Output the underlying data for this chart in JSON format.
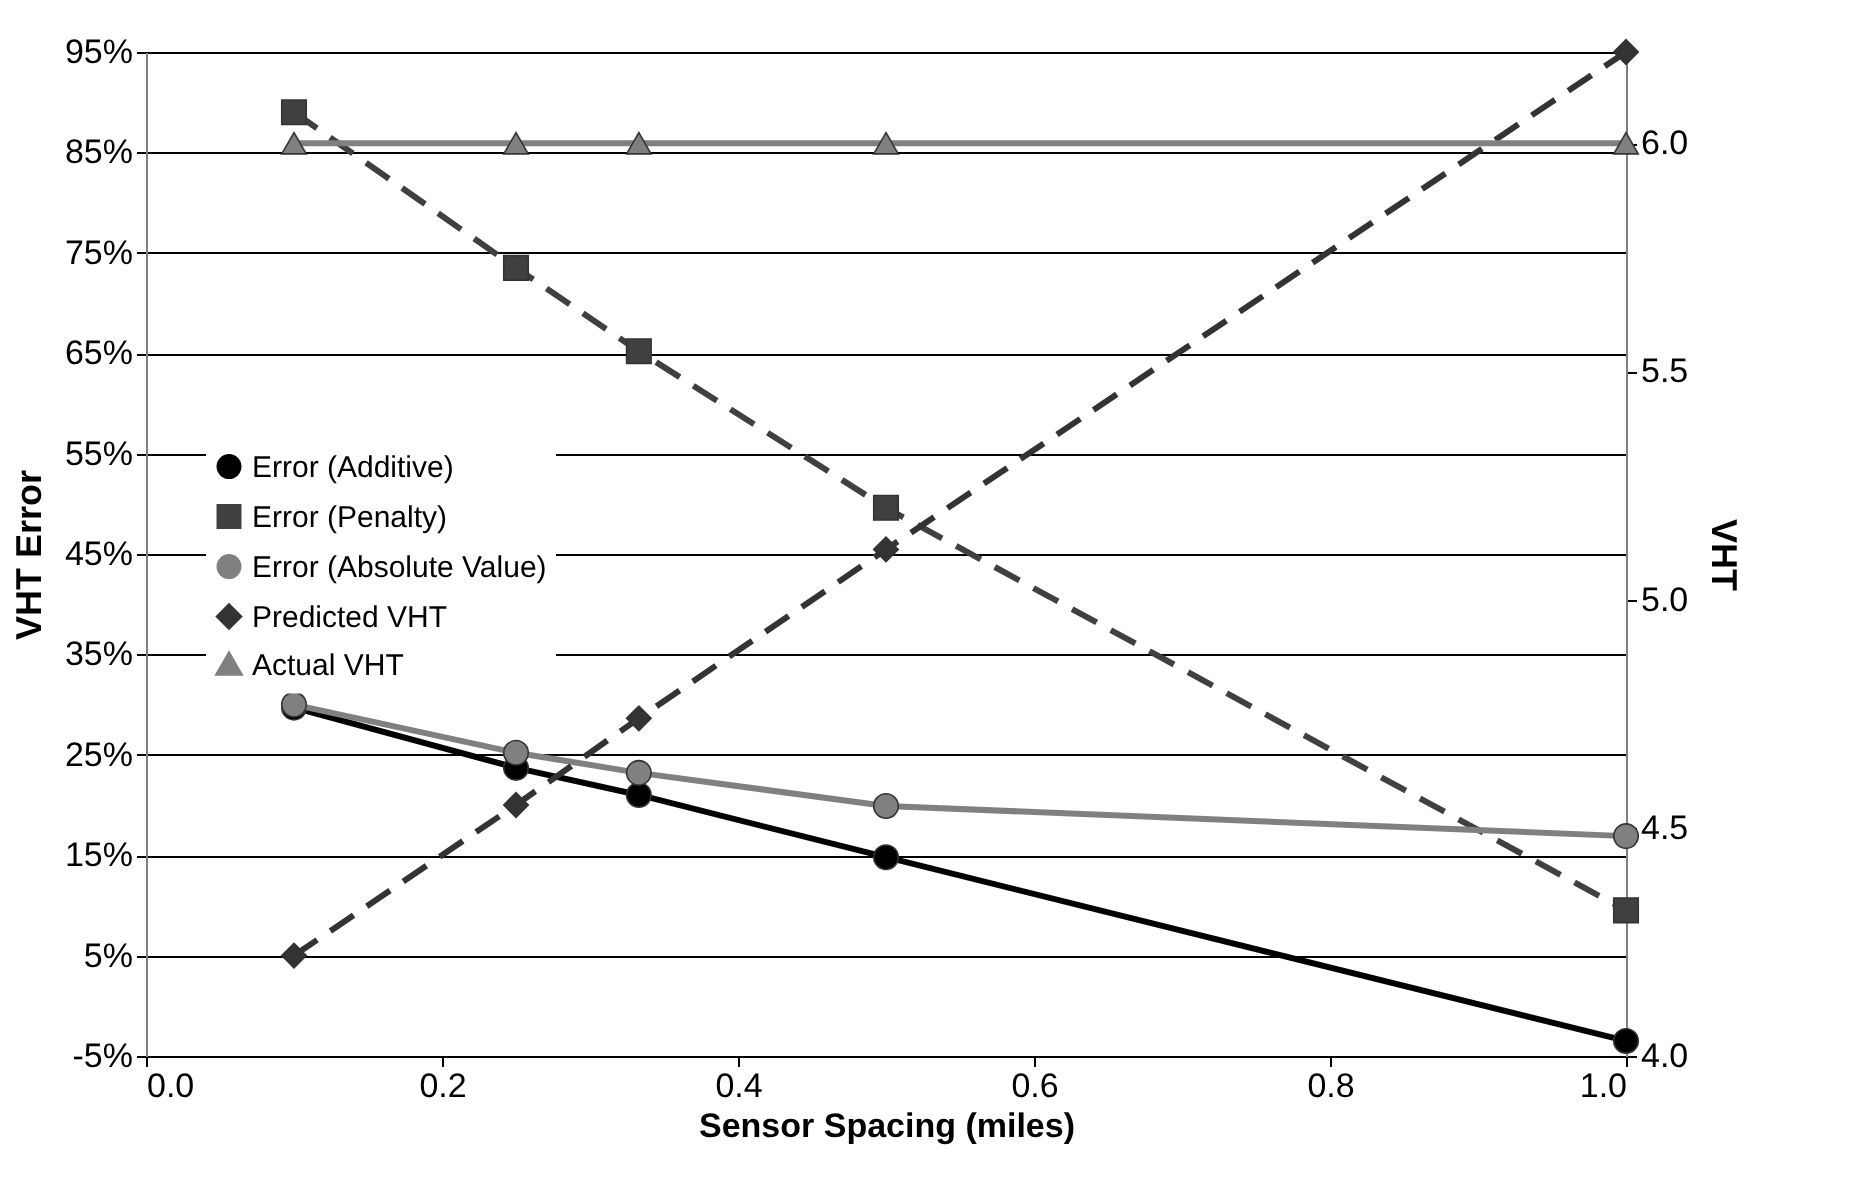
{
  "chart_data": {
    "type": "line",
    "xlabel": "Sensor Spacing (miles)",
    "ylabel": "VHT Error",
    "y2label": "VHT",
    "x": [
      0.1,
      0.25,
      0.333,
      0.5,
      1.0
    ],
    "xlim": [
      0,
      1
    ],
    "xticks": [
      {
        "value": 0,
        "label": "0.0"
      },
      0.2,
      0.4,
      0.6,
      0.8,
      {
        "value": 1,
        "label": "1.0"
      }
    ],
    "ylim": [
      -5,
      95
    ],
    "yticks": [
      {
        "value": -5,
        "label": "-5%"
      },
      {
        "value": 5,
        "label": "5%"
      },
      {
        "value": 15,
        "label": "15%"
      },
      {
        "value": 25,
        "label": "25%"
      },
      {
        "value": 35,
        "label": "35%"
      },
      {
        "value": 45,
        "label": "45%"
      },
      {
        "value": 55,
        "label": "55%"
      },
      {
        "value": 65,
        "label": "65%"
      },
      {
        "value": 75,
        "label": "75%"
      },
      {
        "value": 85,
        "label": "85%"
      },
      {
        "value": 95,
        "label": "95%"
      }
    ],
    "y2lim": [
      4.0,
      6.2
    ],
    "y2ticks": [
      {
        "value": 4,
        "label": "4.0"
      },
      4.5,
      {
        "value": 5,
        "label": "5.0"
      },
      5.5,
      {
        "value": 6,
        "label": "6.0"
      }
    ],
    "grid": "y",
    "legend": "left",
    "series": [
      {
        "name": "Error (Additive)",
        "color": "#000000",
        "marker": "circle",
        "line_style": "solid",
        "values": [
          29.7,
          23.7,
          21,
          14.8,
          -3.5
        ]
      },
      {
        "name": "Error (Penalty)",
        "color": "#404040",
        "marker": "square",
        "line_style": "dashed",
        "values": [
          89,
          73.5,
          65.2,
          49.6,
          9.5
        ]
      },
      {
        "name": "Error (Absolute Value)",
        "color": "#808080",
        "marker": "circle",
        "line_style": "solid",
        "values": [
          30,
          25.2,
          23.2,
          19.9,
          16.9
        ]
      },
      {
        "name": "Predicted VHT",
        "color": "#333333",
        "marker": "diamond",
        "line_style": "dashed",
        "axis": "y2",
        "values": [
          4.22,
          4.55,
          4.74,
          5.11,
          6.2
        ]
      },
      {
        "name": "Actual VHT",
        "color": "#808080",
        "marker": "triangle",
        "line_style": "solid",
        "axis": "y2",
        "values": [
          6.0,
          6.0,
          6.0,
          6.0,
          6.0
        ]
      }
    ]
  }
}
